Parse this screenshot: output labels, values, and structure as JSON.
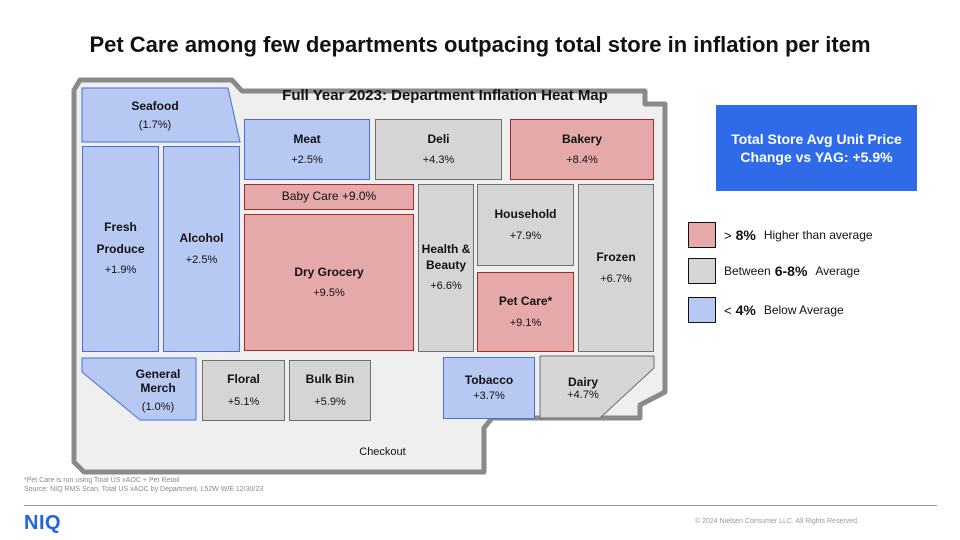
{
  "title": "Pet Care among few departments outpacing total store in inflation per item",
  "map_title": "Full Year 2023: Department Inflation Heat Map",
  "colors": {
    "higher": "#e6a9aa",
    "average": "#d5d5d5",
    "below": "#b7c8f2",
    "total_box": "#2f6be8",
    "logo": "#2563d9"
  },
  "departments": {
    "seafood": {
      "name": "Seafood",
      "value": "(1.7%)"
    },
    "fresh_produce": {
      "name1": "Fresh",
      "name2": "Produce",
      "value": "+1.9%"
    },
    "alcohol": {
      "name": "Alcohol",
      "value": "+2.5%"
    },
    "meat": {
      "name": "Meat",
      "value": "+2.5%"
    },
    "deli": {
      "name": "Deli",
      "value": "+4.3%"
    },
    "bakery": {
      "name": "Bakery",
      "value": "+8.4%"
    },
    "baby_care": {
      "label": "Baby Care  +9.0%"
    },
    "dry_grocery": {
      "name": "Dry Grocery",
      "value": "+9.5%"
    },
    "health_beauty": {
      "name1": "Health &",
      "name2": "Beauty",
      "value": "+6.6%"
    },
    "household": {
      "name": "Household",
      "value": "+7.9%"
    },
    "pet_care": {
      "name": "Pet Care*",
      "value": "+9.1%"
    },
    "frozen": {
      "name": "Frozen",
      "value": "+6.7%"
    },
    "general_merch": {
      "name1": "General",
      "name2": "Merch",
      "value": "(1.0%)"
    },
    "floral": {
      "name": "Floral",
      "value": "+5.1%"
    },
    "bulk_bin": {
      "name": "Bulk Bin",
      "value": "+5.9%"
    },
    "tobacco": {
      "name": "Tobacco",
      "value": "+3.7%"
    },
    "dairy": {
      "name": "Dairy",
      "value": "+4.7%"
    }
  },
  "checkout": "Checkout",
  "total_store": {
    "line1": "Total Store Avg Unit Price",
    "line2": "Change vs YAG:  +5.9%"
  },
  "legend": [
    {
      "symbol": ">",
      "number": "8%",
      "description": "Higher than average"
    },
    {
      "symbol": "Between",
      "number": "6-8%",
      "description": "Average"
    },
    {
      "symbol": "<",
      "number": "4%",
      "description": "Below Average"
    }
  ],
  "footnote": {
    "line1": "*Pet Care is run using Total US xAOC + Pet Retail",
    "line2": "Source: NIQ RMS Scan, Total US xAOC by Department, L52W W/E 12/30/23"
  },
  "logo": "NIQ",
  "copyright": "© 2024 Nielsen Consumer LLC. All Rights Reserved."
}
